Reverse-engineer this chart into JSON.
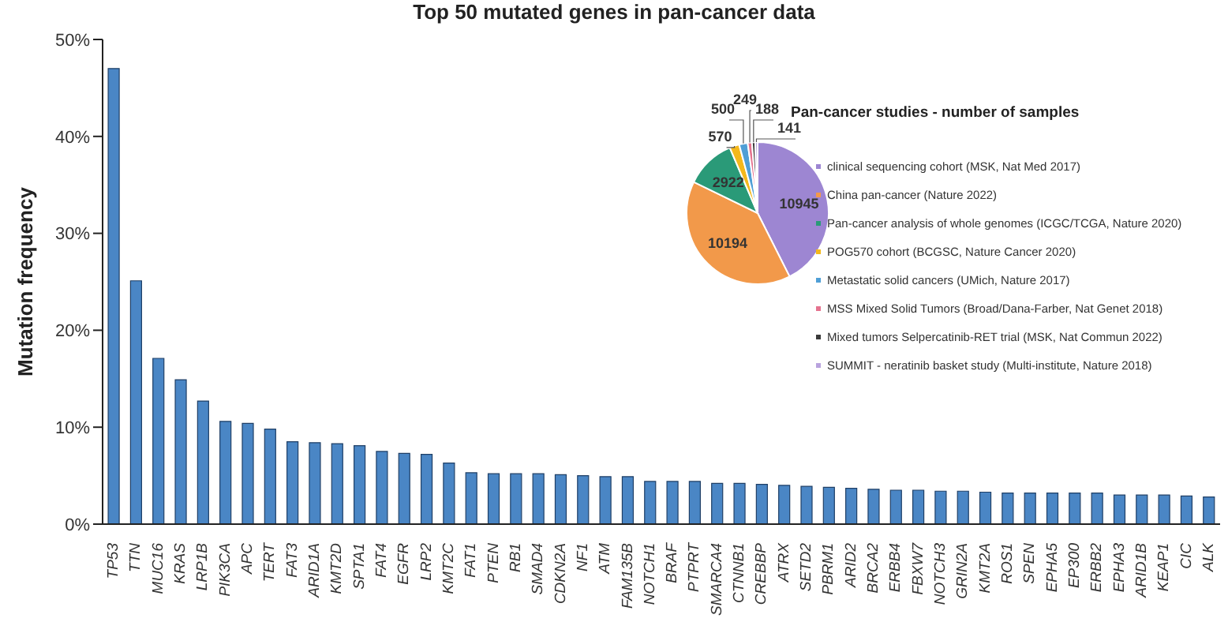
{
  "chart_data": [
    {
      "type": "bar",
      "title": "Top 50 mutated genes in pan-cancer data",
      "ylabel": "Mutation frequency",
      "color": "#4a86c5",
      "categories": [
        "TP53",
        "TTN",
        "MUC16",
        "KRAS",
        "LRP1B",
        "PIK3CA",
        "APC",
        "TERT",
        "FAT3",
        "ARID1A",
        "KMT2D",
        "SPTA1",
        "FAT4",
        "EGFR",
        "LRP2",
        "KMT2C",
        "FAT1",
        "PTEN",
        "RB1",
        "SMAD4",
        "CDKN2A",
        "NF1",
        "ATM",
        "FAM135B",
        "NOTCH1",
        "BRAF",
        "PTPRT",
        "SMARCA4",
        "CTNNB1",
        "CREBBP",
        "ATRX",
        "SETD2",
        "PBRM1",
        "ARID2",
        "BRCA2",
        "ERBB4",
        "FBXW7",
        "NOTCH3",
        "GRIN2A",
        "KMT2A",
        "ROS1",
        "SPEN",
        "EPHA5",
        "EP300",
        "ERBB2",
        "EPHA3",
        "ARID1B",
        "KEAP1",
        "CIC",
        "ALK"
      ],
      "values": [
        47,
        25.1,
        17.1,
        14.9,
        12.7,
        10.6,
        10.4,
        9.8,
        8.5,
        8.4,
        8.3,
        8.1,
        7.5,
        7.3,
        7.2,
        6.3,
        5.3,
        5.2,
        5.2,
        5.2,
        5.1,
        5.0,
        4.9,
        4.9,
        4.4,
        4.4,
        4.4,
        4.2,
        4.2,
        4.1,
        4.0,
        3.9,
        3.8,
        3.7,
        3.6,
        3.5,
        3.5,
        3.4,
        3.4,
        3.3,
        3.2,
        3.2,
        3.2,
        3.2,
        3.2,
        3.0,
        3.0,
        3.0,
        2.9,
        2.8
      ],
      "ylim": [
        0,
        50
      ],
      "yticks": [
        {
          "value": 0,
          "label": "0%"
        },
        {
          "value": 10,
          "label": "10%"
        },
        {
          "value": 20,
          "label": "20%"
        },
        {
          "value": 30,
          "label": "30%"
        },
        {
          "value": 40,
          "label": "40%"
        },
        {
          "value": 50,
          "label": "50%"
        }
      ]
    },
    {
      "type": "pie",
      "title": "Pan-cancer studies - number of samples",
      "legend": "right",
      "data_labels": true,
      "categories": [
        "clinical sequencing cohort (MSK, Nat Med 2017)",
        "China pan-cancer (Nature 2022)",
        "Pan-cancer analysis of whole genomes (ICGC/TCGA, Nature 2020)",
        "POG570 cohort (BCGSC, Nature Cancer 2020)",
        "Metastatic solid cancers (UMich, Nature 2017)",
        "MSS Mixed Solid Tumors (Broad/Dana-Farber, Nat Genet 2018)",
        "Mixed tumors Selpercatinib-RET trial (MSK, Nat Commun 2022)",
        "SUMMIT - neratinib basket study (Multi-institute, Nature 2018)"
      ],
      "values": [
        10945,
        10194,
        2922,
        570,
        500,
        249,
        188,
        141
      ],
      "colors": [
        "#9d86d2",
        "#f2994a",
        "#2a9a78",
        "#f4b81c",
        "#4f9fd6",
        "#e5738f",
        "#3a3a3a",
        "#b9a3de"
      ]
    }
  ]
}
